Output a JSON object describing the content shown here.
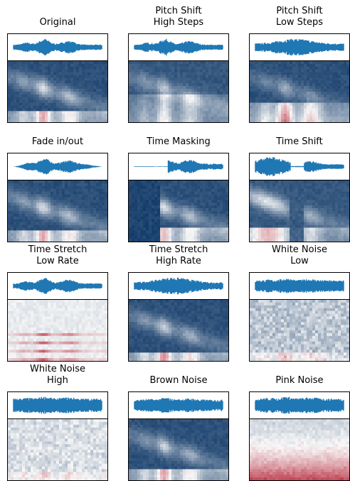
{
  "figure": {
    "panels": [
      {
        "title": "Original",
        "wave": "normal",
        "spec": "original"
      },
      {
        "title": "Pitch Shift\nHigh Steps",
        "wave": "normal",
        "spec": "pitch_high"
      },
      {
        "title": "Pitch Shift\nLow Steps",
        "wave": "dense",
        "spec": "pitch_low"
      },
      {
        "title": "Fade in/out",
        "wave": "fade",
        "spec": "original"
      },
      {
        "title": "Time Masking",
        "wave": "masked",
        "spec": "masked"
      },
      {
        "title": "Time Shift",
        "wave": "shifted",
        "spec": "shifted"
      },
      {
        "title": "Time Stretch\nLow Rate",
        "wave": "normal",
        "spec": "stretch_low"
      },
      {
        "title": "Time Stretch\nHigh Rate",
        "wave": "dense",
        "spec": "stretch_high"
      },
      {
        "title": "White Noise\nLow",
        "wave": "noisy",
        "spec": "white_low"
      },
      {
        "title": "White Noise\nHigh",
        "wave": "very_noisy",
        "spec": "white_high"
      },
      {
        "title": "Brown Noise",
        "wave": "noisy",
        "spec": "brown"
      },
      {
        "title": "Pink Noise",
        "wave": "very_noisy",
        "spec": "pink"
      }
    ],
    "colors": {
      "waveform": "#1f77b4",
      "spec_dark": "#053061",
      "spec_light": "#f7f7f7",
      "spec_red": "#b2182b"
    }
  }
}
